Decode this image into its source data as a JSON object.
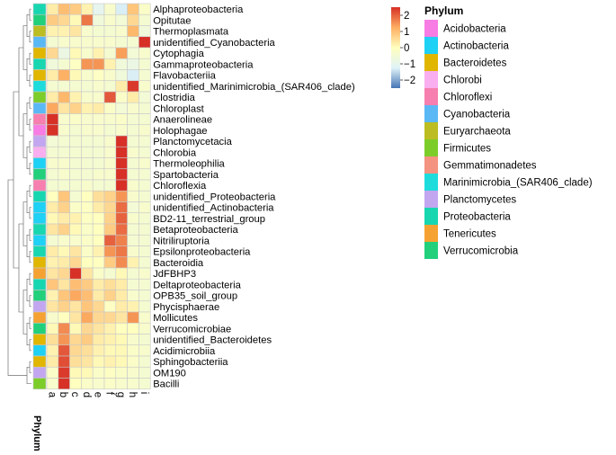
{
  "chart_data": {
    "type": "heatmap",
    "columns": [
      "a",
      "b",
      "c",
      "d",
      "e",
      "f",
      "g",
      "h",
      "i"
    ],
    "rows": [
      "Alphaproteobacteria",
      "Opitutae",
      "Thermoplasmata",
      "unidentified_Cyanobacteria",
      "Cytophagia",
      "Gammaproteobacteria",
      "Flavobacteriia",
      "unidentified_Marinimicrobia_(SAR406_clade)",
      "Clostridia",
      "Chloroplast",
      "Anaerolineae",
      "Holophagae",
      "Planctomycetacia",
      "Chlorobia",
      "Thermoleophilia",
      "Spartobacteria",
      "Chloroflexia",
      "unidentified_Proteobacteria",
      "unidentified_Actinobacteria",
      "BD2-11_terrestrial_group",
      "Betaproteobacteria",
      "Nitriliruptoria",
      "Epsilonproteobacteria",
      "Bacteroidia",
      "JdFBHP3",
      "Deltaproteobacteria",
      "OPB35_soil_group",
      "Phycisphaerae",
      "Mollicutes",
      "Verrucomicrobiae",
      "unidentified_Bacteroidetes",
      "Acidimicrobiia",
      "Sphingobacteriia",
      "OM190",
      "Bacilli"
    ],
    "row_phylum": [
      "Proteobacteria",
      "Verrucomicrobia",
      "Euryarchaeota",
      "Cyanobacteria",
      "Bacteroidetes",
      "Proteobacteria",
      "Bacteroidetes",
      "Marinimicrobia_(SAR406_clade)",
      "Firmicutes",
      "Cyanobacteria",
      "Chloroflexi",
      "Acidobacteria",
      "Planctomycetes",
      "Chlorobi",
      "Actinobacteria",
      "Verrucomicrobia",
      "Chloroflexi",
      "Proteobacteria",
      "Actinobacteria",
      "Actinobacteria",
      "Proteobacteria",
      "Actinobacteria",
      "Proteobacteria",
      "Bacteroidetes",
      "Tenericutes",
      "Proteobacteria",
      "Verrucomicrobia",
      "Planctomycetes",
      "Tenericutes",
      "Verrucomicrobia",
      "Bacteroidetes",
      "Actinobacteria",
      "Bacteroidetes",
      "Planctomycetes",
      "Firmicutes"
    ],
    "values": [
      [
        0.3,
        1.0,
        0.8,
        0.2,
        -1.0,
        -0.3,
        -1.3,
        0.9,
        -0.2
      ],
      [
        0.8,
        0.6,
        0.1,
        1.8,
        -0.6,
        -0.3,
        -0.5,
        0.6,
        -0.4
      ],
      [
        0.2,
        0.2,
        0.4,
        -0.3,
        -0.4,
        -0.4,
        -0.3,
        1.1,
        -0.6
      ],
      [
        -0.4,
        -0.3,
        -0.3,
        -0.3,
        -0.3,
        -0.3,
        -0.4,
        -0.4,
        2.6
      ],
      [
        0.6,
        -0.8,
        0.1,
        -0.3,
        0.2,
        -0.4,
        1.4,
        -0.5,
        -0.3
      ],
      [
        -0.6,
        -0.4,
        -0.1,
        1.5,
        1.5,
        0.2,
        -0.6,
        -0.8,
        -0.4
      ],
      [
        0.3,
        1.2,
        0.1,
        -0.3,
        -0.1,
        -0.3,
        -0.6,
        -1.3,
        -0.4
      ],
      [
        -0.4,
        -0.4,
        -0.4,
        -0.4,
        -0.3,
        -0.4,
        0.3,
        2.4,
        -0.3
      ],
      [
        0.3,
        1.1,
        0.2,
        -0.3,
        -0.3,
        2.1,
        -0.2,
        0.3,
        -0.5
      ],
      [
        1.3,
        0.4,
        0.7,
        0.2,
        0.3,
        -0.2,
        -0.5,
        -0.3,
        -0.4
      ],
      [
        2.7,
        -0.3,
        -0.2,
        -0.3,
        -0.3,
        -0.3,
        -0.2,
        -0.4,
        -0.4
      ],
      [
        2.6,
        -0.3,
        -0.4,
        -0.3,
        -0.3,
        -0.4,
        -0.3,
        -0.4,
        -0.3
      ],
      [
        -0.5,
        -0.4,
        -0.4,
        -0.4,
        -0.4,
        -0.3,
        2.6,
        -0.4,
        -0.4
      ],
      [
        -0.4,
        -0.4,
        -0.4,
        -0.4,
        -0.4,
        -0.3,
        2.7,
        -0.3,
        -0.4
      ],
      [
        -0.3,
        -0.3,
        -0.4,
        -0.4,
        -0.4,
        -0.3,
        2.6,
        -0.4,
        -0.3
      ],
      [
        -0.4,
        -0.3,
        -0.4,
        -0.4,
        -0.3,
        -0.3,
        2.6,
        -0.4,
        -0.4
      ],
      [
        -0.4,
        -0.4,
        -0.4,
        -0.3,
        -0.4,
        -0.4,
        2.7,
        -0.3,
        -0.4
      ],
      [
        0.0,
        0.9,
        -0.4,
        0.0,
        0.5,
        0.7,
        1.5,
        -0.3,
        -0.4
      ],
      [
        0.3,
        0.7,
        -0.2,
        -0.1,
        0.3,
        0.6,
        1.9,
        -0.5,
        -0.3
      ],
      [
        0.1,
        0.3,
        0.2,
        -0.1,
        0.0,
        0.7,
        2.0,
        -0.3,
        -0.4
      ],
      [
        0.4,
        0.7,
        0.1,
        -0.2,
        0.0,
        0.8,
        1.9,
        -0.4,
        -0.4
      ],
      [
        -0.4,
        -0.3,
        -0.3,
        -0.2,
        0.0,
        2.0,
        1.7,
        -0.4,
        -0.4
      ],
      [
        0.3,
        0.1,
        0.4,
        -0.2,
        0.2,
        1.5,
        1.8,
        -0.3,
        -0.4
      ],
      [
        0.2,
        0.3,
        0.6,
        0.0,
        0.0,
        0.8,
        1.6,
        0.2,
        -0.4
      ],
      [
        0.4,
        0.6,
        2.5,
        0.4,
        -0.2,
        -0.4,
        0.1,
        -0.4,
        -0.3
      ],
      [
        0.9,
        0.4,
        1.0,
        0.8,
        0.3,
        0.5,
        0.3,
        -0.4,
        -0.4
      ],
      [
        0.2,
        0.9,
        1.3,
        1.0,
        0.3,
        0.7,
        0.3,
        -0.3,
        -0.4
      ],
      [
        0.4,
        0.7,
        0.4,
        0.9,
        0.6,
        -0.1,
        0.3,
        0.2,
        -0.4
      ],
      [
        -0.3,
        0.0,
        0.4,
        1.3,
        0.6,
        0.6,
        0.4,
        1.5,
        -0.3
      ],
      [
        0.1,
        1.6,
        0.1,
        0.6,
        0.4,
        0.2,
        0.0,
        0.0,
        -0.3
      ],
      [
        0.5,
        1.5,
        0.6,
        0.8,
        0.3,
        0.2,
        0.1,
        -0.3,
        -0.4
      ],
      [
        0.2,
        2.1,
        0.6,
        0.5,
        0.2,
        0.1,
        0.1,
        -0.2,
        -0.3
      ],
      [
        0.3,
        2.2,
        0.5,
        0.4,
        0.1,
        0.2,
        0.1,
        -0.2,
        -0.4
      ],
      [
        -0.2,
        2.4,
        0.1,
        0.1,
        -0.2,
        -0.1,
        -0.2,
        -0.3,
        -0.4
      ],
      [
        -0.3,
        2.6,
        0.0,
        -0.2,
        -0.3,
        -0.2,
        -0.3,
        -0.3,
        -0.4
      ]
    ],
    "color_scale": {
      "min": -2.5,
      "max": 2.5,
      "ticks": [
        2,
        1,
        0,
        -1,
        -2
      ],
      "tick_labels": [
        "2",
        "1",
        "0",
        "−1",
        "−2"
      ],
      "colors": [
        "#4575b4",
        "#e0f3f8",
        "#ffffbf",
        "#fdae61",
        "#d73027"
      ]
    },
    "annotation_label": "Phylum",
    "legend": {
      "title": "Phylum",
      "entries": [
        {
          "name": "Acidobacteria",
          "color": "#f77ce4"
        },
        {
          "name": "Actinobacteria",
          "color": "#1ed1f5"
        },
        {
          "name": "Bacteroidetes",
          "color": "#e0b600"
        },
        {
          "name": "Chlorobi",
          "color": "#f9aef0"
        },
        {
          "name": "Chloroflexi",
          "color": "#f67faf"
        },
        {
          "name": "Cyanobacteria",
          "color": "#5ab8f5"
        },
        {
          "name": "Euryarchaeota",
          "color": "#bcbd22"
        },
        {
          "name": "Firmicutes",
          "color": "#7ccd2a"
        },
        {
          "name": "Gemmatimonadetes",
          "color": "#f49380"
        },
        {
          "name": "Marinimicrobia_(SAR406_clade)",
          "color": "#1edcdc"
        },
        {
          "name": "Planctomycetes",
          "color": "#c3a6f0"
        },
        {
          "name": "Proteobacteria",
          "color": "#18d7b0"
        },
        {
          "name": "Tenericutes",
          "color": "#f6a232"
        },
        {
          "name": "Verrucomicrobia",
          "color": "#22d07c"
        }
      ]
    }
  }
}
